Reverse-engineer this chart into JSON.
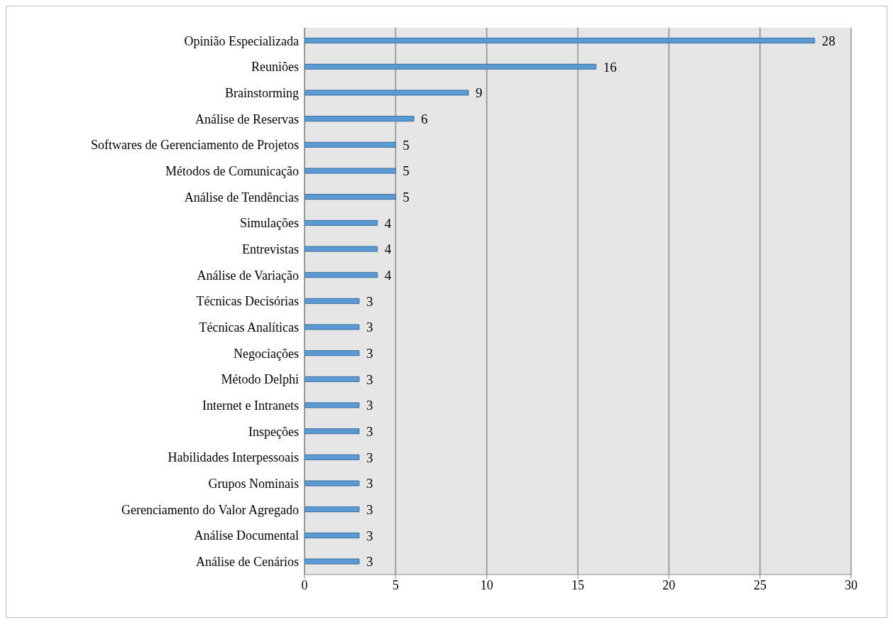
{
  "chart_data": {
    "type": "bar",
    "orientation": "horizontal",
    "categories": [
      "Opinião Especializada",
      "Reuniões",
      "Brainstorming",
      "Análise de Reservas",
      "Softwares de Gerenciamento de Projetos",
      "Métodos de Comunicação",
      "Análise de Tendências",
      "Simulações",
      "Entrevistas",
      "Análise de Variação",
      "Técnicas Decisórias",
      "Técnicas Analíticas",
      "Negociações",
      "Método Delphi",
      "Internet e Intranets",
      "Inspeções",
      "Habilidades Interpessoais",
      "Grupos Nominais",
      "Gerenciamento do Valor Agregado",
      "Análise Documental",
      "Análise de Cenários"
    ],
    "values": [
      28,
      16,
      9,
      6,
      5,
      5,
      5,
      4,
      4,
      4,
      3,
      3,
      3,
      3,
      3,
      3,
      3,
      3,
      3,
      3,
      3
    ],
    "color": "#5b9bd5",
    "xlim": [
      0,
      30
    ],
    "xticks": [
      0,
      5,
      10,
      15,
      20,
      25,
      30
    ],
    "grid": "x",
    "data_labels": true
  }
}
